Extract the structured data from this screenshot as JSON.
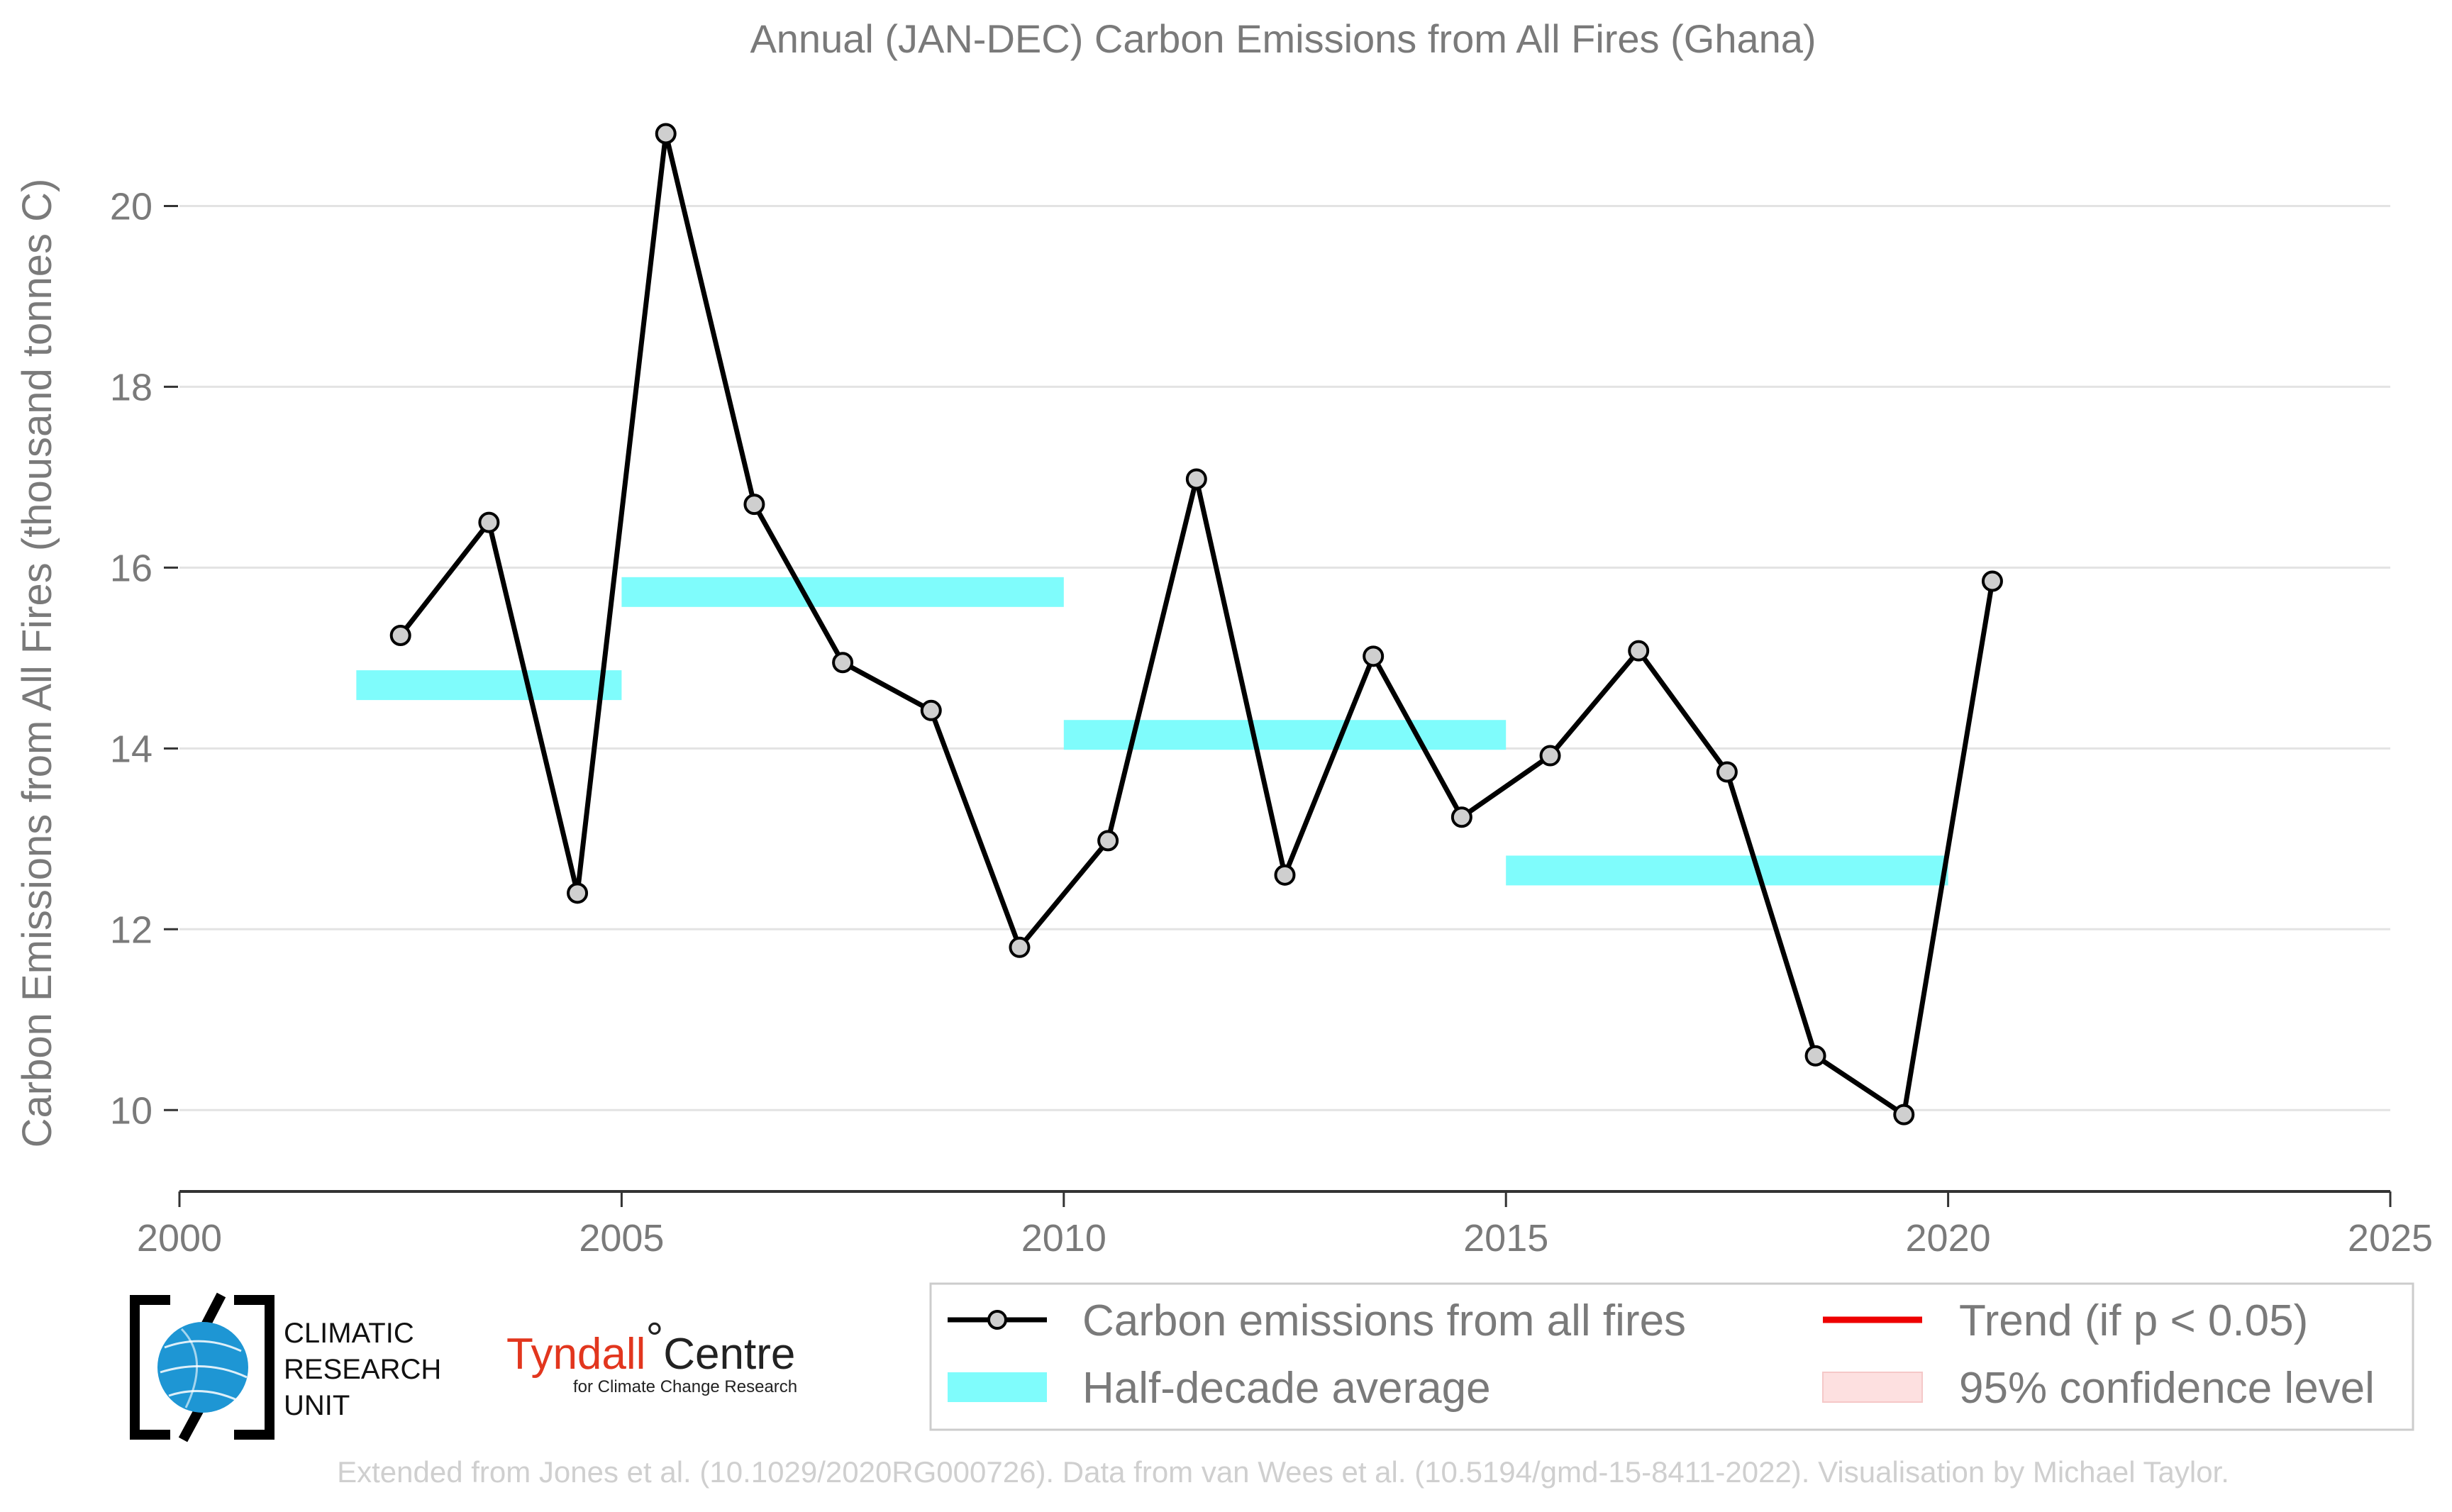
{
  "chart_data": {
    "type": "line",
    "title": "Annual (JAN-DEC) Carbon Emissions from All Fires (Ghana)",
    "xlabel": "",
    "ylabel": "Carbon Emissions from All Fires (thousand tonnes C)",
    "xlim": [
      2000,
      2025
    ],
    "ylim": [
      9.1,
      21.4
    ],
    "x_ticks": [
      2000,
      2005,
      2010,
      2015,
      2020,
      2025
    ],
    "y_ticks": [
      10,
      12,
      14,
      16,
      18,
      20
    ],
    "grid": "horizontal",
    "series": [
      {
        "name": "Carbon emissions from all fires",
        "color": "#000000",
        "x": [
          2002.5,
          2003.5,
          2004.5,
          2005.5,
          2006.5,
          2007.5,
          2008.5,
          2009.5,
          2010.5,
          2011.5,
          2012.5,
          2013.5,
          2014.5,
          2015.5,
          2016.5,
          2017.5,
          2018.5,
          2019.5,
          2020.5
        ],
        "y": [
          15.25,
          16.5,
          12.4,
          20.8,
          16.7,
          14.95,
          14.42,
          11.8,
          12.98,
          16.98,
          12.6,
          15.02,
          13.24,
          13.92,
          15.08,
          13.74,
          10.6,
          9.95,
          15.85
        ]
      }
    ],
    "half_decade_average": {
      "name": "Half-decade average",
      "color": "#7ffcfc",
      "segments": [
        {
          "x_start": 2002,
          "x_end": 2005,
          "value": 14.7
        },
        {
          "x_start": 2005,
          "x_end": 2010,
          "value": 15.73
        },
        {
          "x_start": 2010,
          "x_end": 2015,
          "value": 14.15
        },
        {
          "x_start": 2015,
          "x_end": 2020,
          "value": 12.65
        }
      ]
    },
    "legend": {
      "placement": "bottom-right",
      "entries": [
        {
          "label": "Carbon emissions from all fires",
          "kind": "line-marker",
          "color": "#000000"
        },
        {
          "label": "Trend (if p < 0.05)",
          "kind": "line",
          "color": "#ee0000"
        },
        {
          "label": "Half-decade average",
          "kind": "band",
          "color": "#7ffcfc"
        },
        {
          "label": "95% confidence level",
          "kind": "band",
          "color": "#fde0e0"
        }
      ]
    }
  },
  "logos": {
    "cru": {
      "line1": "CLIMATIC",
      "line2": "RESEARCH",
      "line3": "UNIT"
    },
    "tyndall": {
      "main": "Tyndall",
      "degree": "°",
      "centre": "Centre",
      "sub": "for Climate Change Research"
    }
  },
  "credit": "Extended from Jones et al. (10.1029/2020RG000726). Data from van Wees et al. (10.5194/gmd-15-8411-2022). Visualisation by Michael Taylor."
}
